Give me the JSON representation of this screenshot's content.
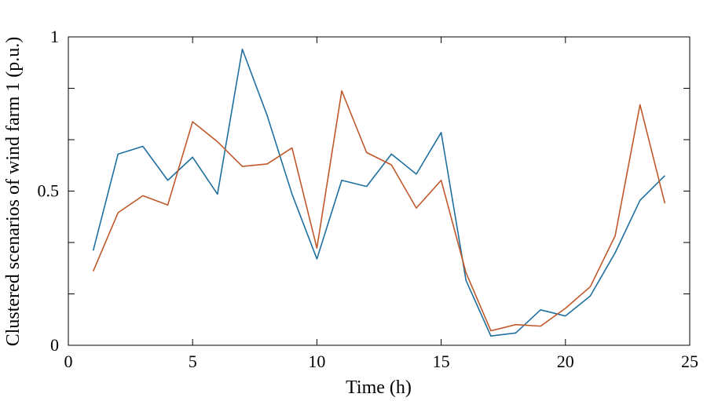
{
  "chart_data": {
    "type": "line",
    "xlabel": "Time (h)",
    "ylabel": "Clustered scenarios of wind farm 1 (p.u.)",
    "xlim": [
      0,
      25
    ],
    "ylim": [
      0,
      1
    ],
    "xticks": [
      0,
      5,
      10,
      15,
      20,
      25
    ],
    "xtick_labels": [
      "0",
      "5",
      "10",
      "15",
      "20",
      "25"
    ],
    "yticks": [
      0,
      0.5,
      1
    ],
    "ytick_labels": [
      "0",
      "0.5",
      "1"
    ],
    "grid": false,
    "x": [
      1,
      2,
      3,
      4,
      5,
      6,
      7,
      8,
      9,
      10,
      11,
      12,
      13,
      14,
      15,
      16,
      17,
      18,
      19,
      20,
      21,
      22,
      23,
      24
    ],
    "series": [
      {
        "color": "#1f6fa0",
        "values": [
          0.307,
          0.62,
          0.645,
          0.535,
          0.61,
          0.49,
          0.96,
          0.745,
          0.49,
          0.28,
          0.535,
          0.515,
          0.62,
          0.555,
          0.69,
          0.21,
          0.03,
          0.04,
          0.115,
          0.095,
          0.16,
          0.3,
          0.47,
          0.55
        ]
      },
      {
        "color": "#c0582a",
        "values": [
          0.24,
          0.43,
          0.485,
          0.455,
          0.725,
          0.66,
          0.58,
          0.588,
          0.64,
          0.315,
          0.825,
          0.625,
          0.585,
          0.445,
          0.535,
          0.235,
          0.047,
          0.067,
          0.062,
          0.12,
          0.19,
          0.355,
          0.78,
          0.46
        ]
      }
    ]
  }
}
